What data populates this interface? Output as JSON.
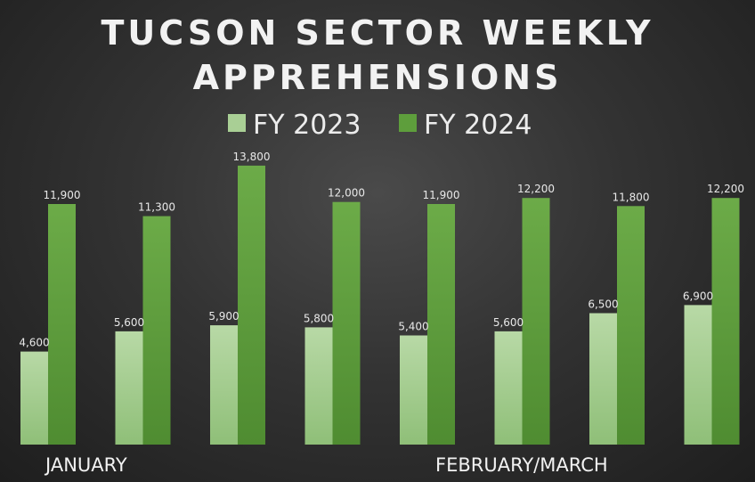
{
  "chart_data": {
    "type": "bar",
    "title": [
      "TUCSON SECTOR WEEKLY",
      "APPREHENSIONS"
    ],
    "legend_position": "top-center",
    "grid": false,
    "categories": [
      "",
      "",
      "",
      "",
      "",
      "",
      "",
      ""
    ],
    "series": [
      {
        "name": "FY 2023",
        "color": "#a9cf95",
        "values": [
          4600,
          5600,
          5900,
          5800,
          5400,
          5600,
          6500,
          6900
        ],
        "labels": [
          "4,600",
          "5,600",
          "5,900",
          "5,800",
          "5,400",
          "5,600",
          "6,500",
          "6,900"
        ]
      },
      {
        "name": "FY 2024",
        "color": "#5e9e3c",
        "values": [
          11900,
          11300,
          13800,
          12000,
          11900,
          12200,
          11800,
          12200
        ],
        "labels": [
          "11,900",
          "11,300",
          "13,800",
          "12,000",
          "11,900",
          "12,200",
          "11,800",
          "12,200"
        ]
      }
    ],
    "group_labels": [
      {
        "text": "JANUARY",
        "start_index": 0
      },
      {
        "text": "FEBRUARY/MARCH",
        "start_index": 4
      }
    ],
    "ylim": [
      0,
      14500
    ]
  }
}
